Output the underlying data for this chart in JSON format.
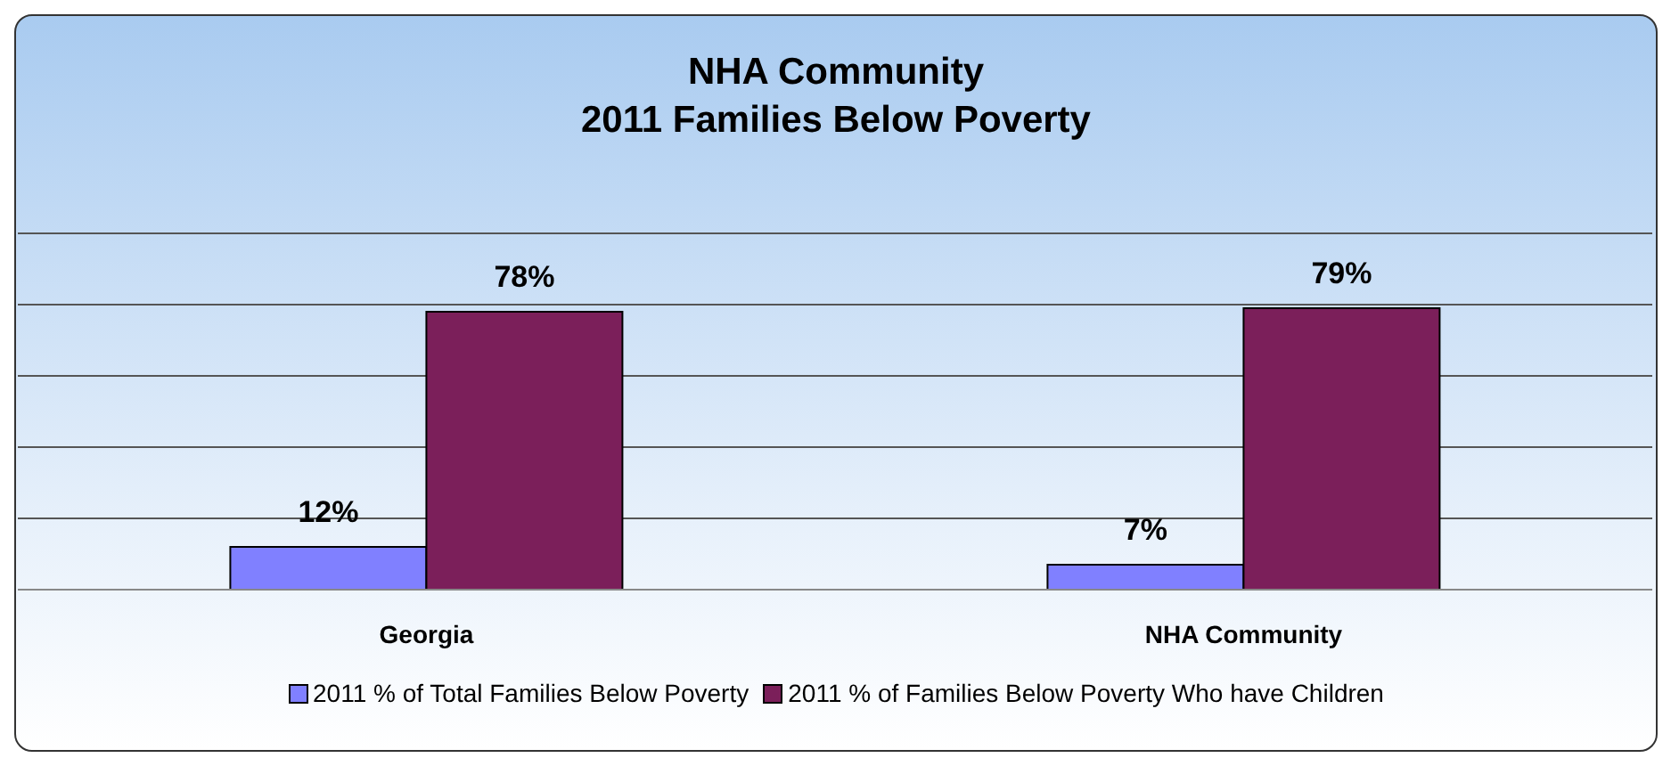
{
  "chart_data": {
    "type": "bar",
    "title": "NHA Community",
    "subtitle": "2011 Families Below Poverty",
    "categories": [
      "Georgia",
      "NHA Community"
    ],
    "series": [
      {
        "name": "2011 % of Total Families Below Poverty",
        "color": "#8080ff",
        "values": [
          12,
          7
        ],
        "value_labels": [
          "12%",
          "7%"
        ]
      },
      {
        "name": "2011 % of Families Below Poverty Who have Children",
        "color": "#7b1f5a",
        "values": [
          78,
          79
        ],
        "value_labels": [
          "78%",
          "79%"
        ]
      }
    ],
    "ylim": [
      0,
      100
    ],
    "yticks": [
      {
        "value": 0,
        "label": null
      },
      {
        "value": 20,
        "label": null
      },
      {
        "value": 40,
        "label": null
      },
      {
        "value": 60,
        "label": null
      },
      {
        "value": 80,
        "label": null
      },
      {
        "value": 100,
        "label": null
      }
    ],
    "tick_labels": "x",
    "grid": "y",
    "legend": "bottom"
  }
}
